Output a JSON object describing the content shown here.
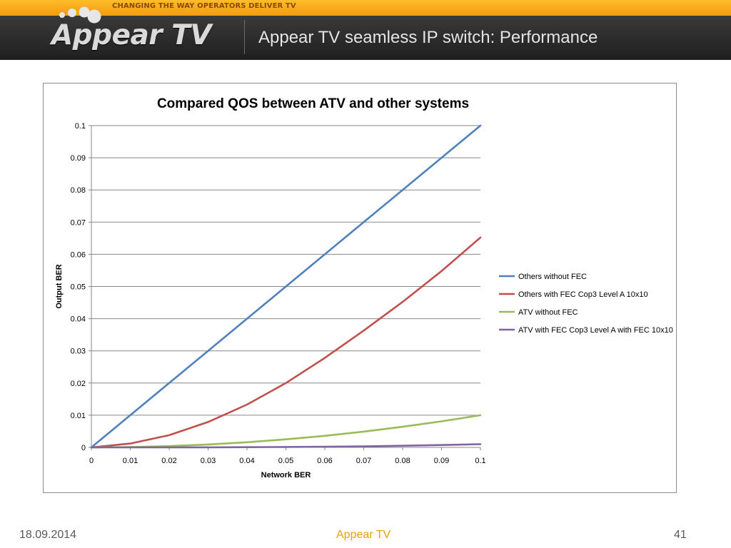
{
  "header": {
    "tagline": "CHANGING THE WAY OPERATORS DELIVER TV",
    "logo_text": "Appear TV",
    "title": "Appear TV seamless IP switch: Performance"
  },
  "footer": {
    "date": "18.09.2014",
    "center": "Appear TV",
    "page": "41"
  },
  "colors": {
    "brand_orange": "#f5a516",
    "header_dark": "#2b2b2b",
    "footer_orange": "#e8a10b"
  },
  "chart_data": {
    "type": "line",
    "title": "Compared QOS between ATV and other systems",
    "xlabel": "Network BER",
    "ylabel": "Output BER",
    "xlim": [
      0,
      0.1
    ],
    "ylim": [
      0,
      0.1
    ],
    "x_ticks": [
      "0",
      "0.01",
      "0.02",
      "0.03",
      "0.04",
      "0.05",
      "0.06",
      "0.07",
      "0.08",
      "0.09",
      "0.1"
    ],
    "y_ticks": [
      "0",
      "0.01",
      "0.02",
      "0.03",
      "0.04",
      "0.05",
      "0.06",
      "0.07",
      "0.08",
      "0.09",
      "0.1"
    ],
    "grid": "horizontal",
    "legend_position": "right",
    "x": [
      0,
      0.01,
      0.02,
      0.03,
      0.04,
      0.05,
      0.06,
      0.07,
      0.08,
      0.09,
      0.1
    ],
    "series": [
      {
        "name": "Others without FEC",
        "color": "#4f81bd",
        "values": [
          0,
          0.01,
          0.02,
          0.03,
          0.04,
          0.05,
          0.06,
          0.07,
          0.08,
          0.09,
          0.1
        ]
      },
      {
        "name": "Others with FEC Cop3 Level A 10x10",
        "color": "#c0504d",
        "values": [
          0,
          0.0012,
          0.0038,
          0.0079,
          0.0133,
          0.02,
          0.0278,
          0.0363,
          0.0452,
          0.0548,
          0.0652
        ]
      },
      {
        "name": "ATV without FEC",
        "color": "#9bbb59",
        "values": [
          0,
          0.0001,
          0.0004,
          0.0009,
          0.0016,
          0.0025,
          0.0036,
          0.0049,
          0.0064,
          0.0081,
          0.01
        ]
      },
      {
        "name": "ATV with FEC Cop3 Level A with FEC 10x10",
        "color": "#8064a2",
        "values": [
          0,
          0,
          0,
          3e-05,
          6e-05,
          0.00013,
          0.00022,
          0.00034,
          0.00051,
          0.00073,
          0.001
        ]
      }
    ]
  }
}
